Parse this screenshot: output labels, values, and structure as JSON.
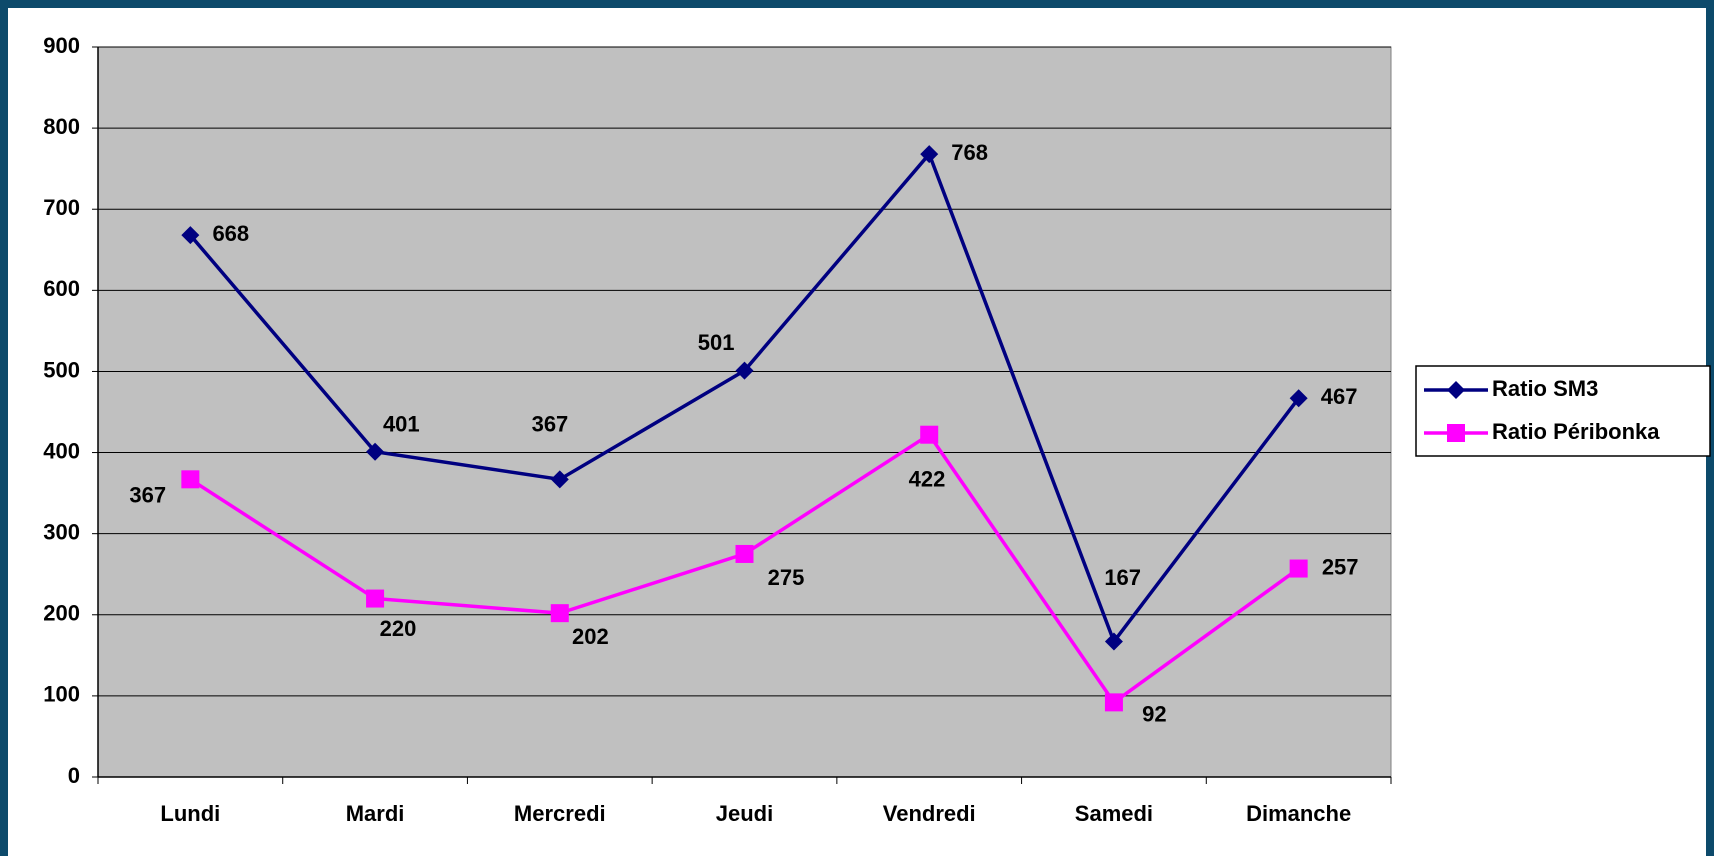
{
  "chart_data": {
    "type": "line",
    "categories": [
      "Lundi",
      "Mardi",
      "Mercredi",
      "Jeudi",
      "Vendredi",
      "Samedi",
      "Dimanche"
    ],
    "series": [
      {
        "name": "Ratio SM3",
        "color": "#000080",
        "marker": "diamond",
        "values": [
          668,
          401,
          367,
          501,
          768,
          167,
          467
        ]
      },
      {
        "name": "Ratio Péribonka",
        "color": "#ff00ff",
        "marker": "square",
        "values": [
          367,
          220,
          202,
          275,
          422,
          92,
          257
        ]
      }
    ],
    "ylim": [
      0,
      900
    ],
    "yticks": [
      0,
      100,
      200,
      300,
      400,
      500,
      600,
      700,
      800,
      900
    ],
    "grid": true,
    "legend": "right",
    "plot_background": "#c0c0c0"
  }
}
